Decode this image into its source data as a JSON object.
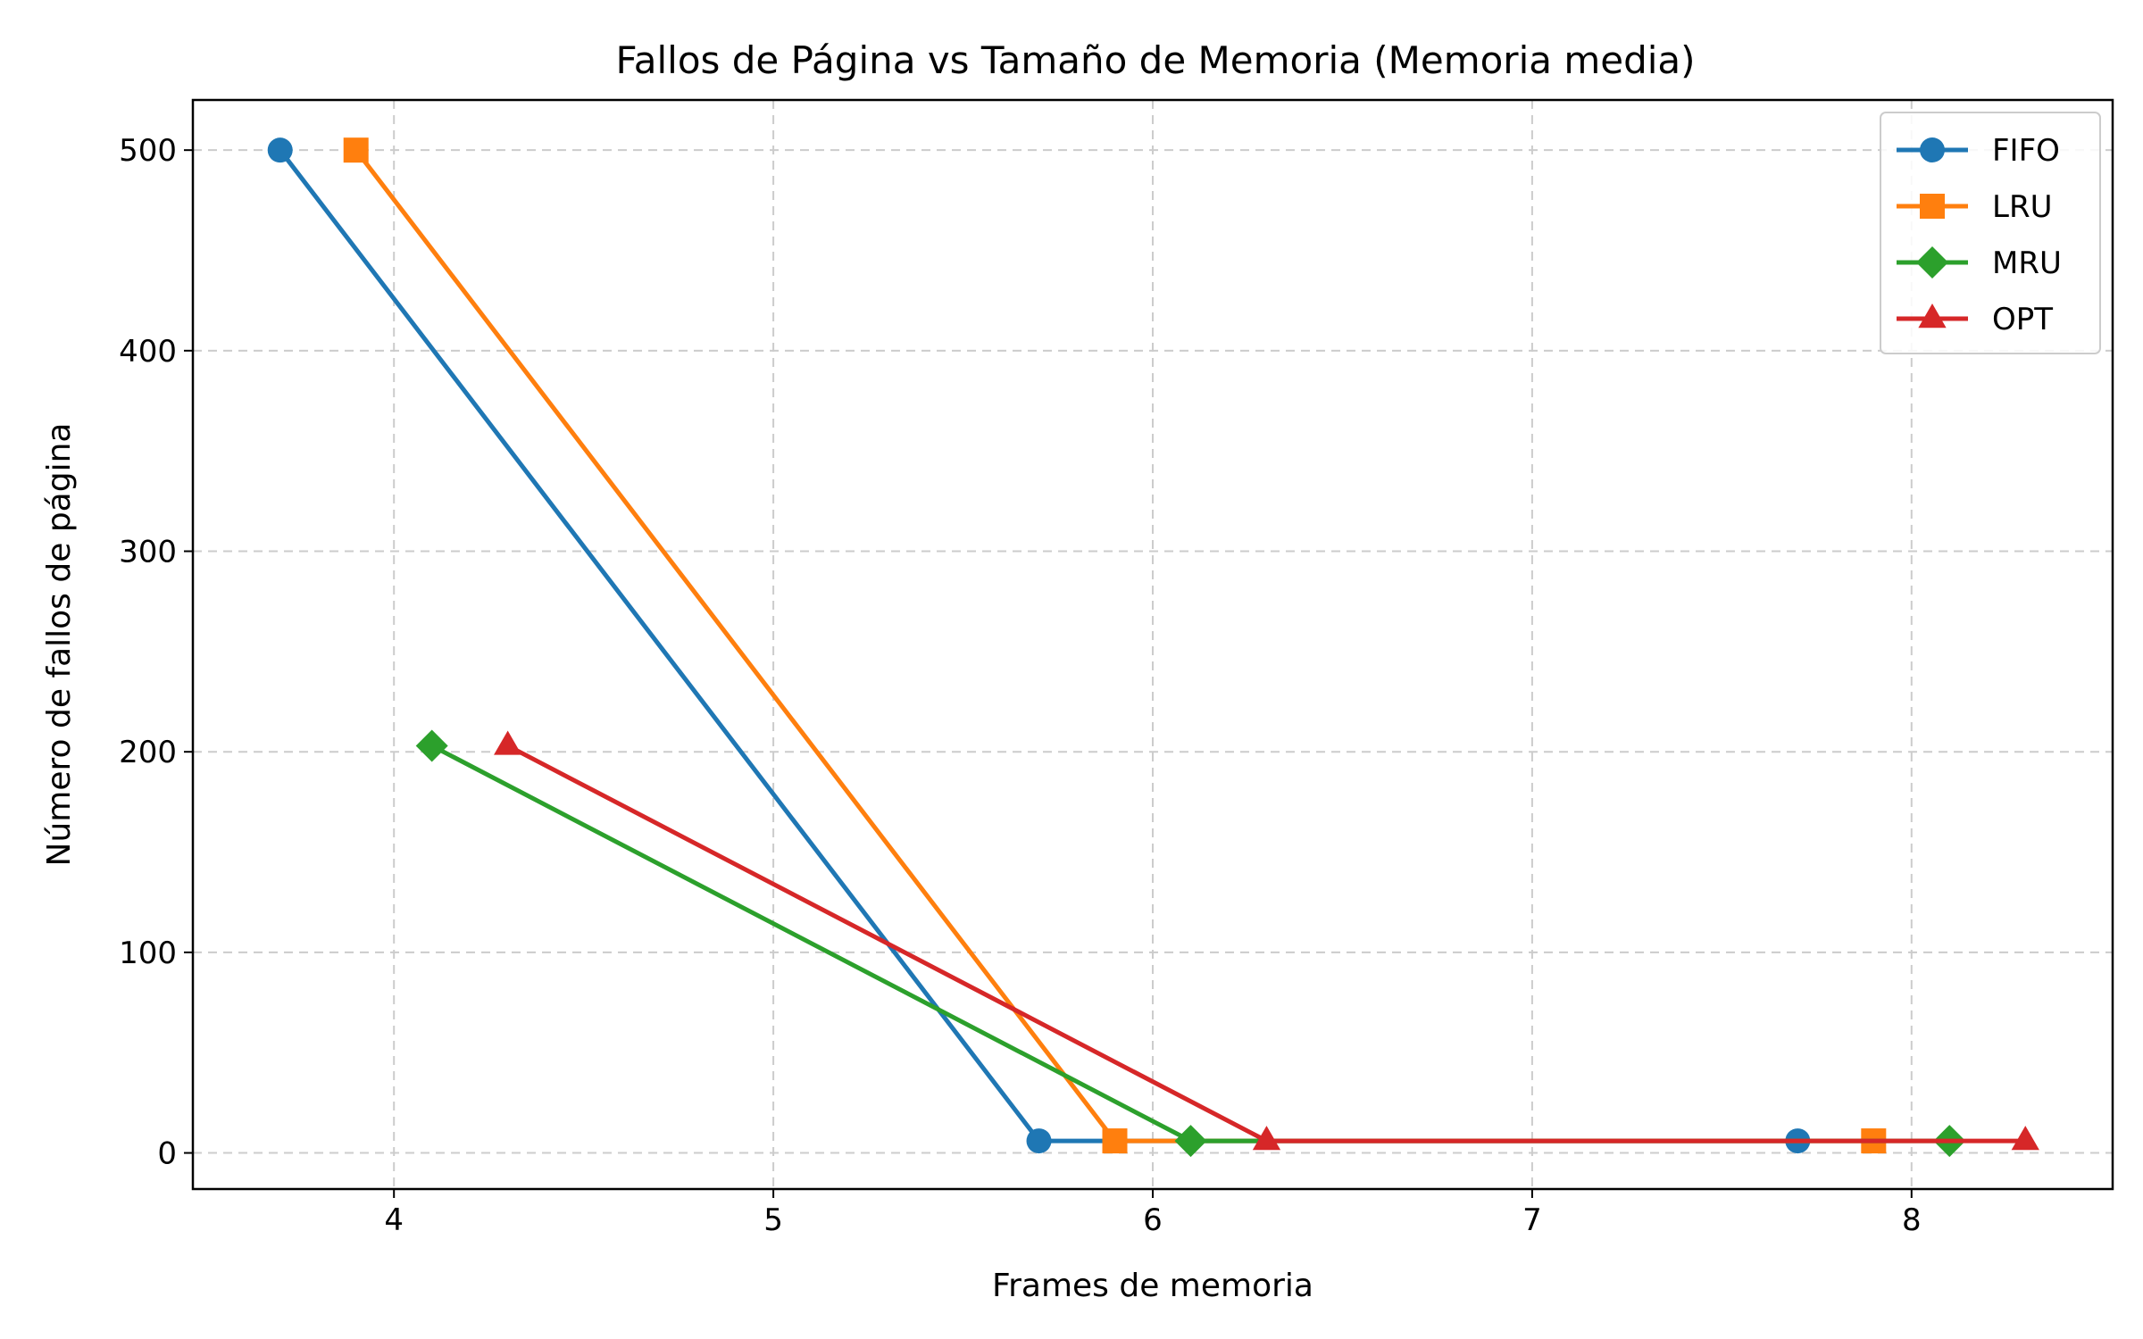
{
  "chart_data": {
    "type": "line",
    "title": "Fallos de Página vs Tamaño de Memoria (Memoria media)",
    "xlabel": "Frames de memoria",
    "ylabel": "Número de fallos de página",
    "xlim": [
      3.47,
      8.53
    ],
    "ylim": [
      -18,
      525
    ],
    "xticks": [
      4,
      5,
      6,
      7,
      8
    ],
    "yticks": [
      0,
      100,
      200,
      300,
      400,
      500
    ],
    "grid": true,
    "legend_position": "top-right",
    "series": [
      {
        "name": "FIFO",
        "color": "#1f77b4",
        "marker": "circle",
        "x": [
          3.7,
          5.7,
          7.7
        ],
        "y": [
          500,
          6,
          6
        ]
      },
      {
        "name": "LRU",
        "color": "#ff7f0e",
        "marker": "square",
        "x": [
          3.9,
          5.9,
          7.9
        ],
        "y": [
          500,
          6,
          6
        ]
      },
      {
        "name": "MRU",
        "color": "#2ca02c",
        "marker": "diamond",
        "x": [
          4.1,
          6.1,
          8.1
        ],
        "y": [
          203,
          6,
          6
        ]
      },
      {
        "name": "OPT",
        "color": "#d62728",
        "marker": "triangle",
        "x": [
          4.3,
          6.3,
          8.3
        ],
        "y": [
          203,
          6,
          6
        ]
      }
    ]
  }
}
